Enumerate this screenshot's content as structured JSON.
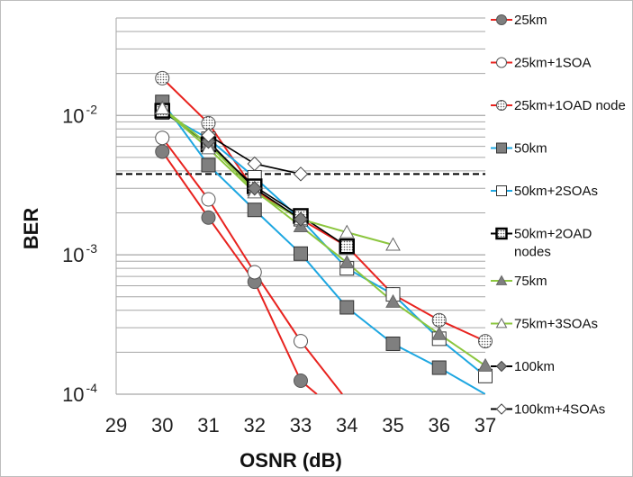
{
  "chart_data": {
    "type": "line",
    "xlabel": "OSNR (dB)",
    "ylabel": "BER",
    "x_ticks": [
      "29",
      "30",
      "31",
      "32",
      "33",
      "34",
      "35",
      "36",
      "37"
    ],
    "y_ticks": [
      {
        "base": "10",
        "exp": "-2"
      },
      {
        "base": "10",
        "exp": "-3"
      },
      {
        "base": "10",
        "exp": "-4"
      }
    ],
    "xlim": [
      29,
      37
    ],
    "ylim": [
      0.0001,
      0.05
    ],
    "y_scale": "log",
    "grid": "horizontal",
    "threshold": 0.0038,
    "legend_position": "right",
    "series": [
      {
        "name": "25km",
        "color": "#e8231f",
        "marker": "circle",
        "fill": "#7f7f7f",
        "points": [
          [
            30,
            0.0055
          ],
          [
            31,
            0.00185
          ],
          [
            32,
            0.00064
          ],
          [
            33,
            0.000125
          ],
          [
            33.35,
            0.0001
          ]
        ]
      },
      {
        "name": "25km+1SOA",
        "color": "#e8231f",
        "marker": "circle",
        "fill": "#ffffff",
        "points": [
          [
            30,
            0.0069
          ],
          [
            31,
            0.0025
          ],
          [
            32,
            0.00075
          ],
          [
            33,
            0.00024
          ],
          [
            33.9,
            0.0001
          ]
        ]
      },
      {
        "name": "25km+1OAD node",
        "color": "#e8231f",
        "marker": "circle",
        "fill": "dotted",
        "points": [
          [
            30,
            0.0185
          ],
          [
            31,
            0.0088
          ],
          [
            32,
            0.0029
          ],
          [
            33,
            0.0018
          ],
          [
            34,
            0.00115
          ],
          [
            35,
            0.00052
          ],
          [
            36,
            0.00034
          ],
          [
            37,
            0.00024
          ]
        ]
      },
      {
        "name": "50km",
        "color": "#1ea7e1",
        "marker": "square",
        "fill": "#7f7f7f",
        "points": [
          [
            30,
            0.0125
          ],
          [
            31,
            0.0044
          ],
          [
            32,
            0.0021
          ],
          [
            33,
            0.00102
          ],
          [
            34,
            0.00042
          ],
          [
            35,
            0.00023
          ],
          [
            36,
            0.000155
          ],
          [
            37,
            0.0001
          ]
        ]
      },
      {
        "name": "50km+2SOAs",
        "color": "#1ea7e1",
        "marker": "square",
        "fill": "#ffffff",
        "points": [
          [
            30,
            0.0105
          ],
          [
            31,
            0.0068
          ],
          [
            32,
            0.0036
          ],
          [
            33,
            0.0018
          ],
          [
            34,
            0.0008
          ],
          [
            35,
            0.00052
          ],
          [
            36,
            0.00025
          ],
          [
            37,
            0.000135
          ]
        ]
      },
      {
        "name": "50km+2OAD nodes",
        "color": "#000000",
        "marker": "square",
        "fill": "dotted",
        "points": [
          [
            30,
            0.0108
          ],
          [
            31,
            0.0062
          ],
          [
            32,
            0.0031
          ],
          [
            33,
            0.0019
          ],
          [
            34,
            0.00115
          ]
        ]
      },
      {
        "name": "75km",
        "color": "#8cc63f",
        "marker": "triangle",
        "fill": "#7f7f7f",
        "points": [
          [
            30,
            0.0113
          ],
          [
            31,
            0.0062
          ],
          [
            32,
            0.0029
          ],
          [
            33,
            0.0016
          ],
          [
            34,
            0.00088
          ],
          [
            35,
            0.00046
          ],
          [
            36,
            0.00027
          ],
          [
            37,
            0.00016
          ]
        ]
      },
      {
        "name": "75km+3SOAs",
        "color": "#8cc63f",
        "marker": "triangle",
        "fill": "#ffffff",
        "points": [
          [
            30,
            0.0112
          ],
          [
            31,
            0.0058
          ],
          [
            32,
            0.0028
          ],
          [
            33,
            0.0018
          ],
          [
            34,
            0.00145
          ],
          [
            35,
            0.00118
          ]
        ]
      },
      {
        "name": "100km",
        "color": "#000000",
        "marker": "diamond",
        "fill": "#7f7f7f",
        "points": [
          [
            31,
            0.0065
          ],
          [
            32,
            0.003
          ],
          [
            33,
            0.0018
          ]
        ]
      },
      {
        "name": "100km+4SOAs",
        "color": "#000000",
        "marker": "diamond",
        "fill": "#ffffff",
        "points": [
          [
            31,
            0.0072
          ],
          [
            32,
            0.0045
          ],
          [
            33,
            0.0038
          ]
        ]
      }
    ]
  }
}
